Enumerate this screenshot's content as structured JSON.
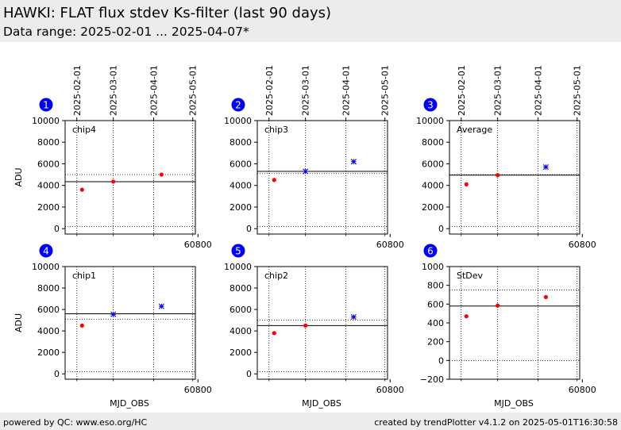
{
  "header": {
    "title": "HAWKI: FLAT flux stdev Ks-filter (last 90 days)",
    "subtitle": "Data range: 2025-02-01 ... 2025-04-07*"
  },
  "footer": {
    "left": "powered by QC: www.eso.org/HC",
    "right": "created by trendPlotter v4.1.2 on 2025-05-01T16:30:58"
  },
  "colors": {
    "badge": "#0000ff",
    "in_range": "#ff0000",
    "out_of_range": "#0000ff",
    "header_bg": "#ececec"
  },
  "chart_data": [
    {
      "panel": "1",
      "type": "scatter",
      "label": "chip4",
      "xlabel": "",
      "ylabel": "ADU",
      "xticks": [
        60800
      ],
      "top_date_ticks": [
        "2025-02-01",
        "2025-03-01",
        "2025-04-01",
        "2025-05-01"
      ],
      "ylim": [
        -500,
        10000
      ],
      "yticks": [
        0,
        2000,
        4000,
        6000,
        8000,
        10000
      ],
      "reference": 4350,
      "thresholds": [
        200,
        5000
      ],
      "points": [
        {
          "x": "2025-02-05",
          "y": 3600,
          "status": "in_range"
        },
        {
          "x": "2025-03-01",
          "y": 4350,
          "status": "in_range"
        },
        {
          "x": "2025-04-07",
          "y": 5000,
          "status": "in_range"
        }
      ]
    },
    {
      "panel": "2",
      "type": "scatter",
      "label": "chip3",
      "xlabel": "",
      "ylabel": "",
      "xticks": [
        60800
      ],
      "top_date_ticks": [
        "2025-02-01",
        "2025-03-01",
        "2025-04-01",
        "2025-05-01"
      ],
      "ylim": [
        -500,
        10000
      ],
      "yticks": [
        0,
        2000,
        4000,
        6000,
        8000,
        10000
      ],
      "reference": 5300,
      "thresholds": [
        200,
        5100
      ],
      "points": [
        {
          "x": "2025-02-05",
          "y": 4500,
          "status": "in_range"
        },
        {
          "x": "2025-03-01",
          "y": 5300,
          "status": "out_of_range"
        },
        {
          "x": "2025-04-07",
          "y": 6200,
          "status": "out_of_range"
        }
      ]
    },
    {
      "panel": "3",
      "type": "scatter",
      "label": "Average",
      "xlabel": "",
      "ylabel": "",
      "xticks": [
        60800
      ],
      "top_date_ticks": [
        "2025-02-01",
        "2025-03-01",
        "2025-04-01",
        "2025-05-01"
      ],
      "ylim": [
        -500,
        10000
      ],
      "yticks": [
        0,
        2000,
        4000,
        6000,
        8000,
        10000
      ],
      "reference": 4950,
      "thresholds": [
        200,
        5000
      ],
      "points": [
        {
          "x": "2025-02-05",
          "y": 4100,
          "status": "in_range"
        },
        {
          "x": "2025-03-01",
          "y": 4950,
          "status": "in_range"
        },
        {
          "x": "2025-04-07",
          "y": 5700,
          "status": "out_of_range"
        }
      ]
    },
    {
      "panel": "4",
      "type": "scatter",
      "label": "chip1",
      "xlabel": "MJD_OBS",
      "ylabel": "ADU",
      "xticks": [
        60800
      ],
      "top_date_ticks": [],
      "ylim": [
        -500,
        10000
      ],
      "yticks": [
        0,
        2000,
        4000,
        6000,
        8000,
        10000
      ],
      "reference": 5600,
      "thresholds": [
        200,
        5100
      ],
      "points": [
        {
          "x": "2025-02-05",
          "y": 4500,
          "status": "in_range"
        },
        {
          "x": "2025-03-01",
          "y": 5550,
          "status": "out_of_range"
        },
        {
          "x": "2025-04-07",
          "y": 6300,
          "status": "out_of_range"
        }
      ]
    },
    {
      "panel": "5",
      "type": "scatter",
      "label": "chip2",
      "xlabel": "MJD_OBS",
      "ylabel": "",
      "xticks": [
        60800
      ],
      "top_date_ticks": [],
      "ylim": [
        -500,
        10000
      ],
      "yticks": [
        0,
        2000,
        4000,
        6000,
        8000,
        10000
      ],
      "reference": 4500,
      "thresholds": [
        200,
        5000
      ],
      "points": [
        {
          "x": "2025-02-05",
          "y": 3800,
          "status": "in_range"
        },
        {
          "x": "2025-03-01",
          "y": 4500,
          "status": "in_range"
        },
        {
          "x": "2025-04-07",
          "y": 5300,
          "status": "out_of_range"
        }
      ]
    },
    {
      "panel": "6",
      "type": "scatter",
      "label": "StDev",
      "xlabel": "MJD_OBS",
      "ylabel": "",
      "xticks": [
        60800
      ],
      "top_date_ticks": [],
      "ylim": [
        -200,
        1000
      ],
      "yticks": [
        -200,
        0,
        200,
        400,
        600,
        800,
        1000
      ],
      "reference": 580,
      "thresholds": [
        0,
        750
      ],
      "points": [
        {
          "x": "2025-02-05",
          "y": 470,
          "status": "in_range"
        },
        {
          "x": "2025-03-01",
          "y": 585,
          "status": "in_range"
        },
        {
          "x": "2025-04-07",
          "y": 675,
          "status": "in_range"
        }
      ]
    }
  ]
}
